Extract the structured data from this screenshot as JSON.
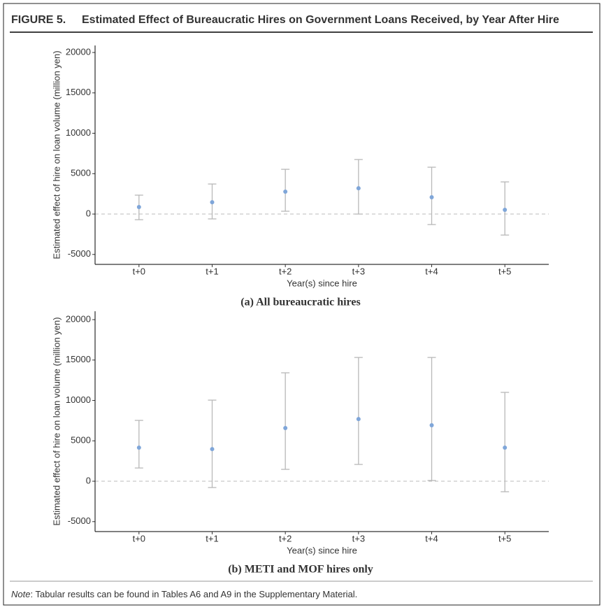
{
  "header": {
    "label": "FIGURE 5.",
    "title": "Estimated Effect of Bureaucratic Hires on Government Loans Received, by Year After Hire"
  },
  "chart_data": [
    {
      "type": "errorbar",
      "caption": "(a) All bureaucratic hires",
      "x_label": "Year(s) since hire",
      "y_label": "Estimated effect of hire on loan volume (million yen)",
      "categories": [
        "t+0",
        "t+1",
        "t+2",
        "t+3",
        "t+4",
        "t+5"
      ],
      "values": [
        870,
        1470,
        2770,
        3200,
        2080,
        520
      ],
      "lower": [
        -700,
        -600,
        350,
        0,
        -1300,
        -2600
      ],
      "upper": [
        2340,
        3720,
        5540,
        6750,
        5800,
        3980
      ],
      "color": "#7fa6d9",
      "error_color": "#b8b8b8",
      "reference_line": 0,
      "ylim": [
        -6230,
        20870
      ],
      "yticks": [
        -5000,
        0,
        5000,
        10000,
        15000,
        20000
      ]
    },
    {
      "type": "errorbar",
      "caption": "(b) METI and MOF hires only",
      "x_label": "Year(s) since hire",
      "y_label": "Estimated effect of hire on loan volume (million yen)",
      "categories": [
        "t+0",
        "t+1",
        "t+2",
        "t+3",
        "t+4",
        "t+5"
      ],
      "values": [
        4160,
        3980,
        6580,
        7700,
        6930,
        4160
      ],
      "lower": [
        1640,
        -780,
        1470,
        2080,
        90,
        -1300
      ],
      "upper": [
        7530,
        10040,
        13420,
        15320,
        15320,
        11000
      ],
      "color": "#7fa6d9",
      "error_color": "#b8b8b8",
      "reference_line": 0,
      "ylim": [
        -6230,
        21040
      ],
      "yticks": [
        -5000,
        0,
        5000,
        10000,
        15000,
        20000
      ]
    }
  ],
  "note": {
    "label": "Note",
    "text": ": Tabular results can be found in Tables A6 and A9 in the Supplementary Material."
  }
}
